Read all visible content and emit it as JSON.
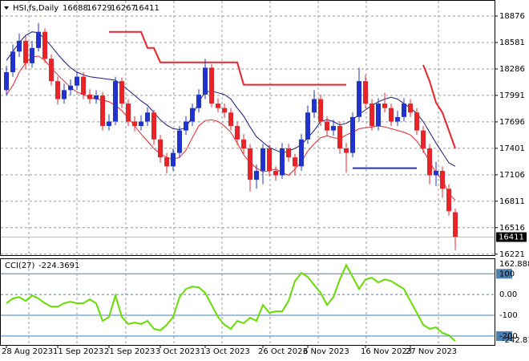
{
  "chart_data": [
    {
      "type": "candlestick",
      "symbol": "HSI,fs,Daily",
      "categories": [
        "28 Aug 2023",
        null,
        null,
        null,
        null,
        null,
        null,
        null,
        "11 Sep 2023",
        null,
        null,
        null,
        null,
        null,
        null,
        null,
        "21 Sep 2023",
        null,
        null,
        null,
        null,
        null,
        null,
        null,
        "3 Oct 2023",
        null,
        null,
        null,
        null,
        null,
        null,
        "13 Oct 2023",
        null,
        null,
        null,
        null,
        null,
        null,
        null,
        null,
        "26 Oct 2023",
        null,
        null,
        null,
        null,
        null,
        null,
        "6 Nov 2023",
        null,
        null,
        null,
        null,
        null,
        null,
        null,
        null,
        "16 Nov 2023",
        null,
        null,
        null,
        null,
        null,
        null,
        "27 Nov 2023",
        null,
        null,
        null,
        null,
        null,
        null,
        null
      ],
      "open": [
        18050,
        18250,
        18480,
        18600,
        18350,
        18520,
        18700,
        18400,
        18150,
        17950,
        18050,
        18100,
        18200,
        18000,
        17950,
        17990,
        17650,
        17700,
        18150,
        17900,
        17700,
        17650,
        17700,
        17800,
        17500,
        17300,
        17200,
        17350,
        17600,
        17700,
        17850,
        18000,
        18300,
        17900,
        17850,
        17800,
        17650,
        17500,
        17400,
        17050,
        17150,
        17400,
        17150,
        17100,
        17400,
        17300,
        17200,
        17500,
        17800,
        17950,
        17700,
        17600,
        17650,
        17400,
        17350,
        17750,
        18150,
        17900,
        17650,
        17900,
        17850,
        17700,
        17750,
        17900,
        17800,
        17600,
        17400,
        17100,
        17150,
        16950,
        16688
      ],
      "high": [
        18320,
        18560,
        18680,
        18650,
        18600,
        18800,
        18740,
        18450,
        18200,
        18120,
        18170,
        18260,
        18250,
        18060,
        18050,
        18030,
        17780,
        18200,
        18190,
        17950,
        17760,
        17770,
        17860,
        17830,
        17550,
        17350,
        17400,
        17650,
        17760,
        17900,
        18060,
        18400,
        18340,
        17960,
        17900,
        17850,
        17700,
        17560,
        17450,
        17220,
        17450,
        17440,
        17200,
        17460,
        17450,
        17340,
        17560,
        17880,
        18050,
        18000,
        17760,
        17720,
        17700,
        17460,
        17800,
        18300,
        18220,
        17950,
        17960,
        18020,
        17900,
        17820,
        17960,
        17950,
        17850,
        17650,
        17450,
        17250,
        17200,
        17000,
        16729
      ],
      "low": [
        17990,
        18200,
        18420,
        18290,
        18300,
        18480,
        18350,
        18100,
        17890,
        17900,
        17990,
        18050,
        17950,
        17900,
        17900,
        17600,
        17600,
        17660,
        17850,
        17650,
        17590,
        17600,
        17650,
        17440,
        17240,
        17120,
        17150,
        17300,
        17550,
        17650,
        17800,
        17950,
        17860,
        17800,
        17740,
        17600,
        17440,
        17340,
        16920,
        16950,
        17000,
        17090,
        17040,
        17060,
        17250,
        17100,
        17150,
        17450,
        17740,
        17650,
        17540,
        17540,
        17340,
        17130,
        17300,
        17700,
        17850,
        17600,
        17600,
        17800,
        17650,
        17650,
        17700,
        17750,
        17550,
        17350,
        17000,
        16980,
        16850,
        16650,
        16267
      ],
      "close": [
        18250,
        18480,
        18600,
        18350,
        18520,
        18700,
        18400,
        18150,
        17950,
        18050,
        18100,
        18200,
        18000,
        17950,
        17990,
        17650,
        17700,
        18150,
        17900,
        17700,
        17650,
        17700,
        17800,
        17500,
        17300,
        17200,
        17350,
        17600,
        17700,
        17850,
        18000,
        18300,
        17900,
        17850,
        17800,
        17650,
        17500,
        17400,
        17050,
        17150,
        17400,
        17150,
        17100,
        17400,
        17300,
        17200,
        17500,
        17800,
        17950,
        17700,
        17600,
        17650,
        17400,
        17350,
        17750,
        18150,
        17900,
        17650,
        17900,
        17850,
        17700,
        17750,
        17900,
        17800,
        17600,
        17400,
        17100,
        17150,
        16950,
        16700,
        16411
      ],
      "up_color": "#2233cc",
      "down_color": "#e8242b",
      "lines": [
        {
          "color": "#1a1a80",
          "values": [
            18380,
            18480,
            18580,
            18660,
            18700,
            18690,
            18620,
            18540,
            18450,
            18370,
            18300,
            18250,
            18220,
            18200,
            18190,
            18180,
            18170,
            18160,
            18110,
            18050,
            17990,
            17930,
            17880,
            17800,
            17720,
            17660,
            17620,
            17610,
            17630,
            17760,
            17920,
            18030,
            18040,
            18020,
            18000,
            17950,
            17850,
            17760,
            17640,
            17530,
            17470,
            17410,
            17380,
            17350,
            17370,
            17400,
            17440,
            17520,
            17600,
            17700,
            17720,
            17700,
            17660,
            17680,
            17720,
            17780,
            17830,
            17880,
            17920,
            17950,
            17970,
            17950,
            17900,
            17850,
            17790,
            17700,
            17580,
            17460,
            17350,
            17240,
            17200
          ]
        },
        {
          "color": "#e8242b",
          "values": [
            18000,
            18100,
            18250,
            18350,
            18420,
            18430,
            18380,
            18300,
            18220,
            18150,
            18080,
            18030,
            18000,
            17970,
            17950,
            17940,
            17920,
            17880,
            17820,
            17740,
            17650,
            17560,
            17480,
            17400,
            17340,
            17300,
            17280,
            17300,
            17380,
            17520,
            17650,
            17710,
            17720,
            17700,
            17650,
            17580,
            17460,
            17330,
            17240,
            17180,
            17140,
            17150,
            17170,
            17130,
            17100,
            17170,
            17250,
            17370,
            17450,
            17520,
            17540,
            17520,
            17510,
            17550,
            17580,
            17620,
            17630,
            17640,
            17650,
            17640,
            17620,
            17600,
            17580,
            17550,
            17480,
            17380,
            17250,
            17130,
            17050,
            16900,
            16820
          ]
        },
        {
          "color": "#e8242b",
          "width": 2,
          "values": [
            null,
            null,
            null,
            null,
            null,
            null,
            null,
            null,
            null,
            null,
            null,
            null,
            null,
            null,
            null,
            null,
            18700,
            18700,
            18700,
            18700,
            18700,
            18700,
            18520,
            18520,
            18360,
            18360,
            18360,
            18360,
            18360,
            18360,
            18360,
            18360,
            18360,
            18360,
            18360,
            18360,
            18360,
            18110,
            18110,
            18110,
            18110,
            18110,
            18110,
            18110,
            18110,
            18110,
            18110,
            18110,
            18110,
            18110,
            18110,
            18110,
            18110,
            18110,
            null,
            null,
            null,
            null,
            null,
            null,
            null,
            null,
            null,
            null,
            null,
            18330,
            18150,
            17910,
            17800,
            17600,
            17400
          ]
        },
        {
          "color": "#2233cc",
          "width": 2,
          "values": [
            null,
            null,
            null,
            null,
            null,
            null,
            null,
            null,
            null,
            null,
            null,
            null,
            null,
            null,
            null,
            null,
            null,
            null,
            null,
            null,
            null,
            null,
            null,
            null,
            null,
            null,
            null,
            null,
            null,
            null,
            null,
            null,
            null,
            null,
            null,
            null,
            null,
            null,
            null,
            null,
            null,
            null,
            null,
            null,
            null,
            null,
            null,
            null,
            null,
            null,
            null,
            null,
            null,
            null,
            17180,
            17180,
            17180,
            17180,
            17180,
            17180,
            17180,
            17180,
            17180,
            17180,
            17180,
            null,
            null,
            null,
            null,
            null,
            null
          ]
        }
      ],
      "ylim": [
        16210,
        19055
      ],
      "yticks": [
        18876,
        18581,
        18286,
        17991,
        17696,
        17401,
        17106,
        16811,
        16516,
        16221
      ],
      "grid": true
    },
    {
      "type": "line",
      "title": "CCI(27)",
      "color": "#66dd00",
      "values": [
        -42,
        -19,
        -12,
        -31,
        -4,
        -19,
        -42,
        -58,
        -58,
        -42,
        -35,
        -42,
        -42,
        -23,
        -42,
        -127,
        -108,
        -4,
        -108,
        -142,
        -135,
        -142,
        -127,
        -165,
        -173,
        -146,
        -108,
        -12,
        27,
        38,
        35,
        8,
        -50,
        -108,
        -146,
        -165,
        -127,
        -138,
        -112,
        -127,
        -50,
        -88,
        -81,
        -81,
        -31,
        65,
        104,
        85,
        46,
        8,
        -50,
        -12,
        73,
        142,
        85,
        27,
        73,
        81,
        58,
        73,
        65,
        46,
        27,
        -31,
        -88,
        -146,
        -165,
        -158,
        -185,
        -196,
        -224.3691
      ],
      "ylim": [
        -242.81,
        162.8881
      ],
      "yticks": [
        100,
        {
          "value": 0,
          "label": "0.00"
        },
        -100,
        -200
      ],
      "levels_color": "#4a7fb0"
    }
  ]
}
